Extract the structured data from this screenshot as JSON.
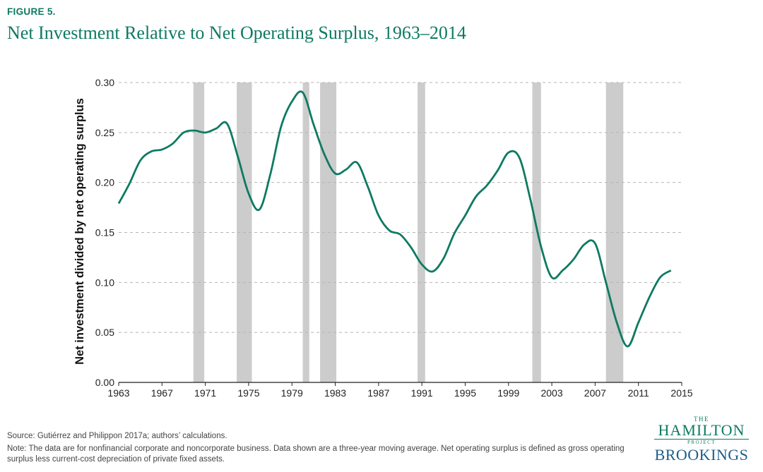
{
  "figure_label": "FIGURE 5.",
  "title": "Net Investment Relative to Net Operating Surplus, 1963–2014",
  "source": "Source: Gutiérrez and Philippon 2017a; authors’ calculations.",
  "note": "Note: The data are for nonfinancial corporate and noncorporate business. Data shown are a three-year moving average. Net operating surplus is defined as gross operating surplus less current-cost depreciation of private fixed assets.",
  "logo": {
    "the": "THE",
    "hamilton": "HAMILTON",
    "project": "PROJECT",
    "brookings": "BROOKINGS"
  },
  "colors": {
    "line": "#0e7a62",
    "recession": "#cccccc",
    "grid": "#b5b5b5",
    "brand": "#0e7a62"
  },
  "chart_data": {
    "type": "line",
    "title": "",
    "xlabel": "",
    "ylabel": "Net investment divided by net operating surplus",
    "xlim": [
      1963,
      2015
    ],
    "ylim": [
      0,
      0.3
    ],
    "xticks": [
      1963,
      1967,
      1971,
      1975,
      1979,
      1983,
      1987,
      1991,
      1995,
      1999,
      2003,
      2007,
      2011,
      2015
    ],
    "yticks": [
      0.0,
      0.05,
      0.1,
      0.15,
      0.2,
      0.25,
      0.3
    ],
    "grid": "horizontal dashed",
    "recession_bands": [
      [
        1969.9,
        1970.9
      ],
      [
        1973.9,
        1975.3
      ],
      [
        1980.0,
        1980.6
      ],
      [
        1981.6,
        1983.1
      ],
      [
        1990.6,
        1991.3
      ],
      [
        2001.2,
        2002.0
      ],
      [
        2008.0,
        2009.6
      ]
    ],
    "series": [
      {
        "x": [
          1963,
          1964,
          1965,
          1966,
          1967,
          1968,
          1969,
          1970,
          1971,
          1972,
          1973,
          1974,
          1975,
          1976,
          1977,
          1978,
          1979,
          1980,
          1981,
          1982,
          1983,
          1984,
          1985,
          1986,
          1987,
          1988,
          1989,
          1990,
          1991,
          1992,
          1993,
          1994,
          1995,
          1996,
          1997,
          1998,
          1999,
          2000,
          2001,
          2002,
          2003,
          2004,
          2005,
          2006,
          2007,
          2008,
          2009,
          2010,
          2011,
          2012,
          2013,
          2014
        ],
        "y": [
          0.179,
          0.199,
          0.222,
          0.231,
          0.233,
          0.239,
          0.25,
          0.252,
          0.25,
          0.254,
          0.259,
          0.226,
          0.189,
          0.173,
          0.208,
          0.256,
          0.281,
          0.29,
          0.258,
          0.228,
          0.209,
          0.213,
          0.22,
          0.196,
          0.167,
          0.152,
          0.148,
          0.135,
          0.118,
          0.111,
          0.124,
          0.149,
          0.167,
          0.186,
          0.197,
          0.212,
          0.23,
          0.225,
          0.184,
          0.136,
          0.105,
          0.112,
          0.123,
          0.138,
          0.139,
          0.1,
          0.06,
          0.036,
          0.06,
          0.085,
          0.105,
          0.112
        ]
      }
    ]
  }
}
